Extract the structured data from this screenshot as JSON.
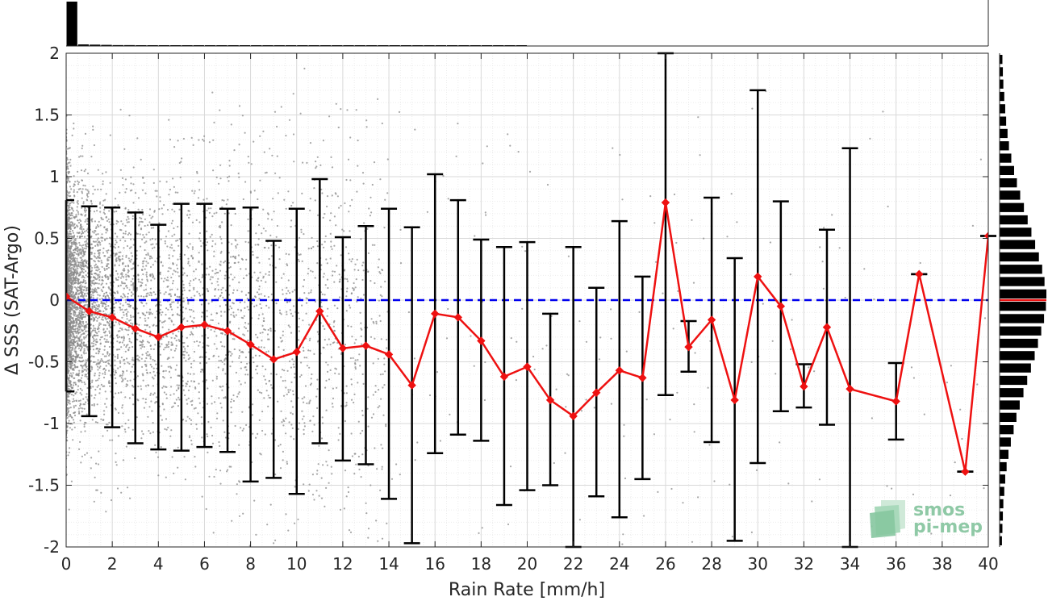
{
  "chart_data": {
    "type": "scatter",
    "title": "",
    "xlabel": "Rain Rate [mm/h]",
    "ylabel": "Δ SSS (SAT-Argo)",
    "xlim": [
      0,
      40
    ],
    "ylim": [
      -2,
      2
    ],
    "x_ticks": [
      0,
      2,
      4,
      6,
      8,
      10,
      12,
      14,
      16,
      18,
      20,
      22,
      24,
      26,
      28,
      30,
      32,
      34,
      36,
      38,
      40
    ],
    "y_ticks": [
      -2,
      -1.5,
      -1,
      -0.5,
      0,
      0.5,
      1,
      1.5,
      2
    ],
    "y_tick_labels": [
      "-2",
      "-1.5",
      "-1",
      "-0.5",
      "0",
      "0.5",
      "1",
      "1.5",
      "2"
    ],
    "grid": true,
    "reference_line": {
      "y": 0,
      "style": "dashed",
      "color": "#0000ee"
    },
    "colors": {
      "mean": "#ee1111",
      "errorbar": "#000000",
      "scatter": "#8a8a8a",
      "histogram": "#000000"
    },
    "series": [
      {
        "kind": "mean_with_std",
        "x": [
          0,
          1,
          2,
          3,
          4,
          5,
          6,
          7,
          8,
          9,
          10,
          11,
          12,
          13,
          14,
          15,
          16,
          17,
          18,
          19,
          20,
          21,
          22,
          23,
          24,
          25,
          26,
          27,
          28,
          29,
          30,
          31,
          32,
          33,
          34,
          36,
          37,
          39,
          40
        ],
        "y": [
          0.03,
          -0.09,
          -0.14,
          -0.23,
          -0.3,
          -0.22,
          -0.2,
          -0.25,
          -0.36,
          -0.48,
          -0.42,
          -0.09,
          -0.39,
          -0.37,
          -0.44,
          -0.69,
          -0.11,
          -0.14,
          -0.33,
          -0.62,
          -0.54,
          -0.81,
          -0.94,
          -0.75,
          -0.57,
          -0.63,
          0.79,
          -0.38,
          -0.16,
          -0.81,
          0.19,
          -0.05,
          -0.7,
          -0.22,
          -0.72,
          -0.82,
          0.21,
          -1.39,
          0.52
        ],
        "low": [
          -0.74,
          -0.94,
          -1.03,
          -1.16,
          -1.21,
          -1.22,
          -1.19,
          -1.23,
          -1.47,
          -1.44,
          -1.57,
          -1.16,
          -1.3,
          -1.33,
          -1.61,
          -1.97,
          -1.24,
          -1.09,
          -1.14,
          -1.66,
          -1.54,
          -1.5,
          -2.0,
          -1.59,
          -1.76,
          -1.45,
          -0.77,
          -0.58,
          -1.15,
          -1.95,
          -1.32,
          -0.9,
          -0.87,
          -1.01,
          -2.0,
          -1.13,
          0.21,
          -1.39,
          0.52
        ],
        "high": [
          0.81,
          0.76,
          0.75,
          0.71,
          0.61,
          0.78,
          0.78,
          0.74,
          0.75,
          0.48,
          0.74,
          0.98,
          0.51,
          0.6,
          0.74,
          0.59,
          1.02,
          0.81,
          0.49,
          0.43,
          0.47,
          -0.11,
          0.43,
          0.1,
          0.64,
          0.19,
          2.0,
          -0.17,
          0.83,
          0.34,
          1.7,
          0.8,
          -0.52,
          0.57,
          1.23,
          -0.51,
          0.21,
          -1.39,
          0.52
        ]
      }
    ],
    "top_histogram": {
      "axis": "x",
      "bin_width": 0.5,
      "relative_counts": [
        1.0,
        0.035,
        0.03,
        0.025,
        0.02,
        0.02,
        0.018,
        0.016,
        0.014,
        0.012,
        0.011,
        0.01,
        0.009,
        0.008,
        0.007,
        0.007,
        0.006,
        0.006,
        0.005,
        0.005,
        0.004,
        0.004,
        0.004,
        0.003,
        0.003,
        0.003,
        0.003,
        0.002,
        0.002,
        0.002,
        0.002,
        0.002,
        0.001,
        0.001,
        0.001,
        0.001,
        0.001,
        0.001,
        0.001,
        0.001
      ]
    },
    "right_histogram": {
      "axis": "y",
      "y_centers": [
        1.95,
        1.85,
        1.75,
        1.65,
        1.55,
        1.45,
        1.35,
        1.25,
        1.15,
        1.05,
        0.95,
        0.85,
        0.75,
        0.65,
        0.55,
        0.45,
        0.35,
        0.25,
        0.15,
        0.05,
        -0.05,
        -0.15,
        -0.25,
        -0.35,
        -0.45,
        -0.55,
        -0.65,
        -0.75,
        -0.85,
        -0.95,
        -1.05,
        -1.15,
        -1.25,
        -1.35,
        -1.45,
        -1.55,
        -1.65,
        -1.75,
        -1.85,
        -1.95
      ],
      "relative_counts": [
        0.06,
        0.07,
        0.08,
        0.1,
        0.12,
        0.14,
        0.17,
        0.2,
        0.25,
        0.31,
        0.37,
        0.44,
        0.52,
        0.6,
        0.68,
        0.76,
        0.84,
        0.91,
        0.96,
        1.0,
        0.99,
        0.95,
        0.89,
        0.82,
        0.75,
        0.67,
        0.59,
        0.51,
        0.43,
        0.36,
        0.3,
        0.24,
        0.19,
        0.15,
        0.12,
        0.1,
        0.08,
        0.07,
        0.06,
        0.05
      ],
      "median_marker": 0.0
    }
  },
  "logo": {
    "line1": "smos",
    "line2": "pi-mep"
  }
}
